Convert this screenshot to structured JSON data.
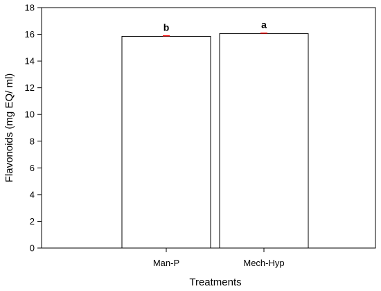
{
  "chart_data": {
    "type": "bar",
    "categories": [
      "Man-P",
      "Mech-Hyp"
    ],
    "values": [
      15.85,
      16.05
    ],
    "errors": [
      0.04,
      0.04
    ],
    "significance_letters": [
      "b",
      "a"
    ],
    "ylim": [
      0,
      18
    ],
    "yticks": [
      0,
      2,
      4,
      6,
      8,
      10,
      12,
      14,
      16,
      18
    ],
    "xlabel": "Treatments",
    "ylabel": "Flavonoids (mg EQ/ ml)",
    "grid": false,
    "colors": {
      "bar_fill": "#ffffff",
      "bar_stroke": "#000000",
      "error_bar": "#ff0000"
    }
  }
}
